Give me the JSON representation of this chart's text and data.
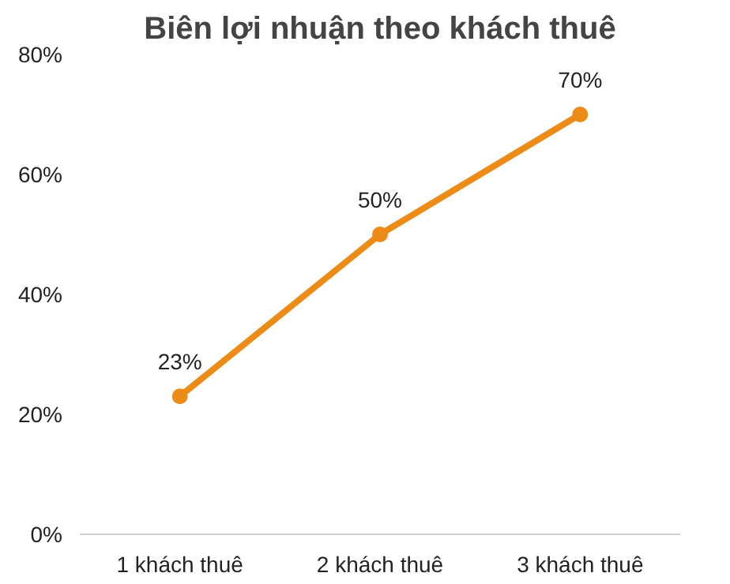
{
  "chart_data": {
    "type": "line",
    "title": "Biên lợi nhuận theo khách thuê",
    "categories": [
      "1 khách thuê",
      "2 khách thuê",
      "3 khách thuê"
    ],
    "series": [
      {
        "color": "#ed8b17",
        "values": [
          23,
          50,
          70
        ]
      }
    ],
    "value_labels": [
      "23%",
      "50%",
      "70%"
    ],
    "ylim": [
      0,
      80
    ],
    "yticks": [
      {
        "value": 0,
        "label": "0%"
      },
      {
        "value": 20,
        "label": "20%"
      },
      {
        "value": 40,
        "label": "40%"
      },
      {
        "value": 60,
        "label": "60%"
      },
      {
        "value": 80,
        "label": "80%"
      }
    ],
    "grid": false,
    "marker": "circle",
    "line_style": "solid"
  }
}
